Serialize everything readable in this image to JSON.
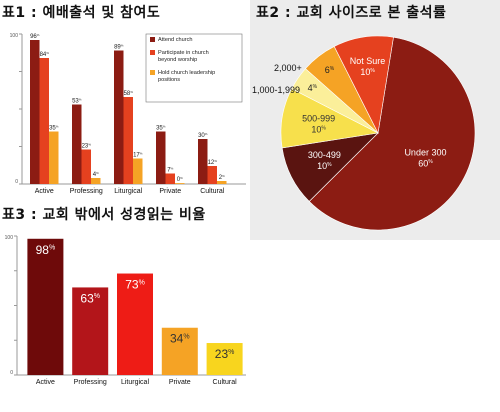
{
  "chart_data": [
    {
      "type": "bar",
      "title": "표1 : 예배출석 및 참여도",
      "categories": [
        "Active",
        "Professing",
        "Liturgical",
        "Private",
        "Cultural"
      ],
      "series": [
        {
          "name": "Attend church",
          "values": [
            96,
            53,
            89,
            35,
            30
          ],
          "labels": [
            "96",
            "53",
            "89",
            "35",
            "30"
          ],
          "color": "#8c1c13"
        },
        {
          "name": "Participate in church beyond worship",
          "values": [
            84,
            23,
            58,
            7,
            12
          ],
          "labels": [
            "84",
            "23",
            "58",
            "7",
            "12"
          ],
          "color": "#e5411f"
        },
        {
          "name": "Hold church leadership positions",
          "values": [
            35,
            4,
            17,
            0,
            2
          ],
          "labels": [
            "35",
            "4",
            "17",
            "0",
            "2"
          ],
          "color": "#f5a325"
        }
      ],
      "unit": "%",
      "ylim": [
        0,
        100
      ],
      "yticks": [
        "100",
        "0"
      ],
      "legend_position": "top-right"
    },
    {
      "type": "pie",
      "title": "표2 : 교회 사이즈로 본 출석률",
      "categories": [
        "Under 300",
        "300-499",
        "500-999",
        "1,000-1,999",
        "2,000+",
        "Not Sure"
      ],
      "values": [
        60,
        10,
        10,
        4,
        6,
        10
      ],
      "labels": [
        "60",
        "10",
        "10",
        "4",
        "6",
        "10"
      ],
      "unit": "%",
      "colors": [
        "#8c1c13",
        "#5a1410",
        "#f7e04c",
        "#fbef9a",
        "#f5a325",
        "#e5411f"
      ]
    },
    {
      "type": "bar",
      "title": "표3 : 교회 밖에서 성경읽는 비율",
      "categories": [
        "Active",
        "Professing",
        "Liturgical",
        "Private",
        "Cultural"
      ],
      "values": [
        98,
        63,
        73,
        34,
        23
      ],
      "labels": [
        "98",
        "63",
        "73",
        "34",
        "23"
      ],
      "unit": "%",
      "colors": [
        "#6e0a0a",
        "#b3151a",
        "#ee1c16",
        "#f5a325",
        "#f8d51e"
      ],
      "ylim": [
        0,
        100
      ],
      "yticks": [
        "100",
        "0"
      ]
    }
  ]
}
